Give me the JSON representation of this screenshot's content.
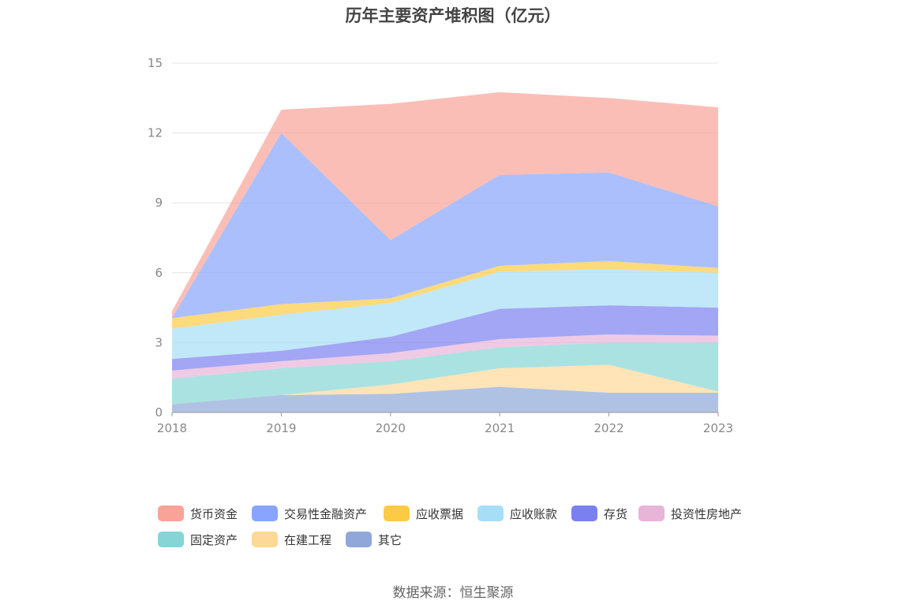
{
  "title": "历年主要资产堆积图（亿元）",
  "source": "数据来源：恒生聚源",
  "chart_data": {
    "type": "area",
    "stacked": true,
    "x": [
      "2018",
      "2019",
      "2020",
      "2021",
      "2022",
      "2023"
    ],
    "ylim": [
      0,
      15
    ],
    "yticks": [
      "0",
      "3",
      "6",
      "9",
      "12",
      "15"
    ],
    "grid": true,
    "legend_position": "bottom",
    "series": [
      {
        "name": "其它",
        "color": "#8fa8d9",
        "values": [
          0.35,
          0.75,
          0.8,
          1.1,
          0.85,
          0.85
        ]
      },
      {
        "name": "在建工程",
        "color": "#fdd998",
        "values": [
          0.0,
          0.0,
          0.4,
          0.8,
          1.2,
          0.05
        ]
      },
      {
        "name": "固定资产",
        "color": "#86d5d6",
        "values": [
          1.1,
          1.15,
          1.0,
          0.9,
          0.95,
          2.1
        ]
      },
      {
        "name": "投资性房地产",
        "color": "#e8b4d8",
        "values": [
          0.35,
          0.3,
          0.35,
          0.35,
          0.35,
          0.3
        ]
      },
      {
        "name": "存货",
        "color": "#7a80f0",
        "values": [
          0.5,
          0.45,
          0.7,
          1.3,
          1.25,
          1.2
        ]
      },
      {
        "name": "应收账款",
        "color": "#a6def7",
        "values": [
          1.3,
          1.55,
          1.45,
          1.6,
          1.55,
          1.5
        ]
      },
      {
        "name": "应收票据",
        "color": "#fccb45",
        "values": [
          0.45,
          0.45,
          0.2,
          0.25,
          0.35,
          0.2
        ]
      },
      {
        "name": "交易性金融资产",
        "color": "#88a4fc",
        "values": [
          0.0,
          7.35,
          2.5,
          3.9,
          3.8,
          2.65
        ]
      },
      {
        "name": "货币资金",
        "color": "#f9a398",
        "values": [
          0.3,
          1.0,
          5.85,
          3.55,
          3.2,
          4.25
        ]
      }
    ]
  },
  "legend_order": [
    "货币资金",
    "交易性金融资产",
    "应收票据",
    "应收账款",
    "存货",
    "投资性房地产",
    "固定资产",
    "在建工程",
    "其它"
  ]
}
